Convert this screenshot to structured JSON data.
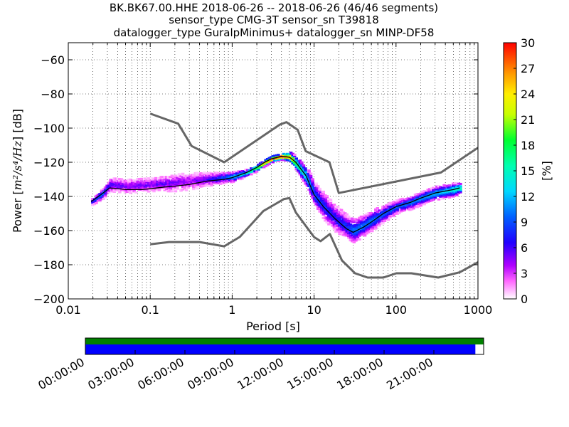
{
  "title": {
    "line1": "BK.BK67.00.HHE   2018-06-26 -- 2018-06-26  (46/46 segments)",
    "line2": "sensor_type CMG-3T sensor_sn T39818",
    "line3": "datalogger_type GuralpMinimus+ datalogger_sn MINP-DF58"
  },
  "colorbar": {
    "label": "[%]",
    "ticks": [
      "0",
      "3",
      "6",
      "9",
      "12",
      "15",
      "18",
      "21",
      "24",
      "27",
      "30"
    ],
    "range": [
      0,
      30
    ]
  },
  "chart_data": [
    {
      "type": "heatmap",
      "xlabel": "Period [s]",
      "ylabel_prefix": "Power [",
      "ylabel_math": "m²/s⁴/Hz",
      "ylabel_suffix": "] [dB]",
      "xscale": "log",
      "xlim": [
        0.01,
        1000
      ],
      "ylim": [
        -200,
        -50
      ],
      "xticks": [
        {
          "v": 0.01,
          "label": "0.01"
        },
        {
          "v": 0.1,
          "label": "0.1"
        },
        {
          "v": 1,
          "label": "1"
        },
        {
          "v": 10,
          "label": "10"
        },
        {
          "v": 100,
          "label": "100"
        },
        {
          "v": 1000,
          "label": "1000"
        }
      ],
      "yticks": [
        {
          "v": -60,
          "label": "−60"
        },
        {
          "v": -80,
          "label": "−80"
        },
        {
          "v": -100,
          "label": "−100"
        },
        {
          "v": -120,
          "label": "−120"
        },
        {
          "v": -140,
          "label": "−140"
        },
        {
          "v": -160,
          "label": "−160"
        },
        {
          "v": -180,
          "label": "−180"
        },
        {
          "v": -200,
          "label": "−200"
        }
      ],
      "grid": "dotted",
      "model_curves": [
        {
          "name": "high-noise-model",
          "color": "#666666",
          "points": [
            [
              0.1,
              -91.5
            ],
            [
              0.22,
              -97.4
            ],
            [
              0.32,
              -110.5
            ],
            [
              0.8,
              -120
            ],
            [
              3.8,
              -98
            ],
            [
              4.6,
              -96.5
            ],
            [
              6.3,
              -101
            ],
            [
              7.9,
              -113.5
            ],
            [
              15.4,
              -120
            ],
            [
              20,
              -138
            ],
            [
              354,
              -126
            ],
            [
              1000,
              -111.5
            ]
          ]
        },
        {
          "name": "low-noise-model",
          "color": "#666666",
          "points": [
            [
              0.1,
              -168
            ],
            [
              0.17,
              -166.7
            ],
            [
              0.4,
              -166.7
            ],
            [
              0.8,
              -169.2
            ],
            [
              1.24,
              -163.7
            ],
            [
              2.4,
              -148.6
            ],
            [
              4.3,
              -141.5
            ],
            [
              5,
              -141
            ],
            [
              6,
              -149.4
            ],
            [
              10,
              -163.8
            ],
            [
              12,
              -166.2
            ],
            [
              15.6,
              -162
            ],
            [
              21.9,
              -177.5
            ],
            [
              31.6,
              -185
            ],
            [
              45,
              -187.5
            ],
            [
              70,
              -187.5
            ],
            [
              101,
              -185
            ],
            [
              154,
              -185
            ],
            [
              328,
              -187.5
            ],
            [
              600,
              -184.4
            ],
            [
              1000,
              -178.5
            ]
          ]
        }
      ],
      "mode_curve": {
        "name": "mode",
        "color": "#000000",
        "points": [
          [
            0.019,
            -143
          ],
          [
            0.025,
            -139
          ],
          [
            0.032,
            -135
          ],
          [
            0.05,
            -136
          ],
          [
            0.08,
            -136
          ],
          [
            0.1,
            -135.5
          ],
          [
            0.15,
            -134.5
          ],
          [
            0.2,
            -134
          ],
          [
            0.3,
            -133
          ],
          [
            0.5,
            -131
          ],
          [
            0.8,
            -130
          ],
          [
            1,
            -129
          ],
          [
            1.5,
            -126
          ],
          [
            2,
            -123
          ],
          [
            2.5,
            -120
          ],
          [
            3,
            -118
          ],
          [
            4,
            -116.5
          ],
          [
            5,
            -117
          ],
          [
            6,
            -120
          ],
          [
            8,
            -128
          ],
          [
            10,
            -139
          ],
          [
            13,
            -146
          ],
          [
            18,
            -153
          ],
          [
            25,
            -159
          ],
          [
            30,
            -161
          ],
          [
            40,
            -158
          ],
          [
            50,
            -155
          ],
          [
            70,
            -150
          ],
          [
            100,
            -146
          ],
          [
            150,
            -143.5
          ],
          [
            200,
            -141
          ],
          [
            300,
            -138
          ],
          [
            500,
            -136
          ],
          [
            600,
            -135
          ]
        ]
      },
      "band_samples": [
        {
          "x": 0.019,
          "y": -143,
          "w": 2,
          "p": 8
        },
        {
          "x": 0.025,
          "y": -139,
          "w": 3,
          "p": 10
        },
        {
          "x": 0.032,
          "y": -133,
          "w": 4,
          "p": 6
        },
        {
          "x": 0.05,
          "y": -134,
          "w": 4,
          "p": 5
        },
        {
          "x": 0.1,
          "y": -133,
          "w": 4,
          "p": 5
        },
        {
          "x": 0.2,
          "y": -132,
          "w": 5,
          "p": 5
        },
        {
          "x": 0.3,
          "y": -131,
          "w": 5,
          "p": 4
        },
        {
          "x": 0.5,
          "y": -130,
          "w": 4,
          "p": 6
        },
        {
          "x": 0.8,
          "y": -129,
          "w": 3,
          "p": 9
        },
        {
          "x": 1,
          "y": -128.5,
          "w": 3,
          "p": 12
        },
        {
          "x": 1.5,
          "y": -126,
          "w": 2,
          "p": 15
        },
        {
          "x": 2,
          "y": -123,
          "w": 2,
          "p": 20
        },
        {
          "x": 2.5,
          "y": -120,
          "w": 2,
          "p": 25
        },
        {
          "x": 3,
          "y": -118,
          "w": 2,
          "p": 28
        },
        {
          "x": 4,
          "y": -116.5,
          "w": 2,
          "p": 29
        },
        {
          "x": 5,
          "y": -117,
          "w": 3,
          "p": 25
        },
        {
          "x": 6,
          "y": -121,
          "w": 4,
          "p": 18
        },
        {
          "x": 8,
          "y": -129,
          "w": 6,
          "p": 12
        },
        {
          "x": 10,
          "y": -139,
          "w": 7,
          "p": 9
        },
        {
          "x": 13,
          "y": -146,
          "w": 8,
          "p": 8
        },
        {
          "x": 18,
          "y": -153,
          "w": 8,
          "p": 7
        },
        {
          "x": 25,
          "y": -158,
          "w": 7,
          "p": 8
        },
        {
          "x": 30,
          "y": -160,
          "w": 7,
          "p": 10
        },
        {
          "x": 40,
          "y": -157,
          "w": 6,
          "p": 10
        },
        {
          "x": 50,
          "y": -154,
          "w": 6,
          "p": 10
        },
        {
          "x": 70,
          "y": -150,
          "w": 5,
          "p": 9
        },
        {
          "x": 100,
          "y": -146,
          "w": 4,
          "p": 9
        },
        {
          "x": 150,
          "y": -143.5,
          "w": 4,
          "p": 10
        },
        {
          "x": 200,
          "y": -141,
          "w": 4,
          "p": 11
        },
        {
          "x": 300,
          "y": -138,
          "w": 4,
          "p": 12
        },
        {
          "x": 500,
          "y": -136,
          "w": 4,
          "p": 14
        },
        {
          "x": 600,
          "y": -135,
          "w": 3,
          "p": 16
        }
      ]
    },
    {
      "type": "timeline",
      "range_hours": [
        0,
        24
      ],
      "ticks": [
        "00:00:00",
        "03:00:00",
        "06:00:00",
        "09:00:00",
        "12:00:00",
        "15:00:00",
        "18:00:00",
        "21:00:00"
      ],
      "tick_hours": [
        0,
        3,
        6,
        9,
        12,
        15,
        18,
        21
      ],
      "rows": [
        {
          "name": "available-data",
          "color": "#008000",
          "start": 0,
          "end": 24
        },
        {
          "name": "psd-segments",
          "color": "#0000ff",
          "start": 0,
          "end": 23.5
        }
      ]
    }
  ]
}
